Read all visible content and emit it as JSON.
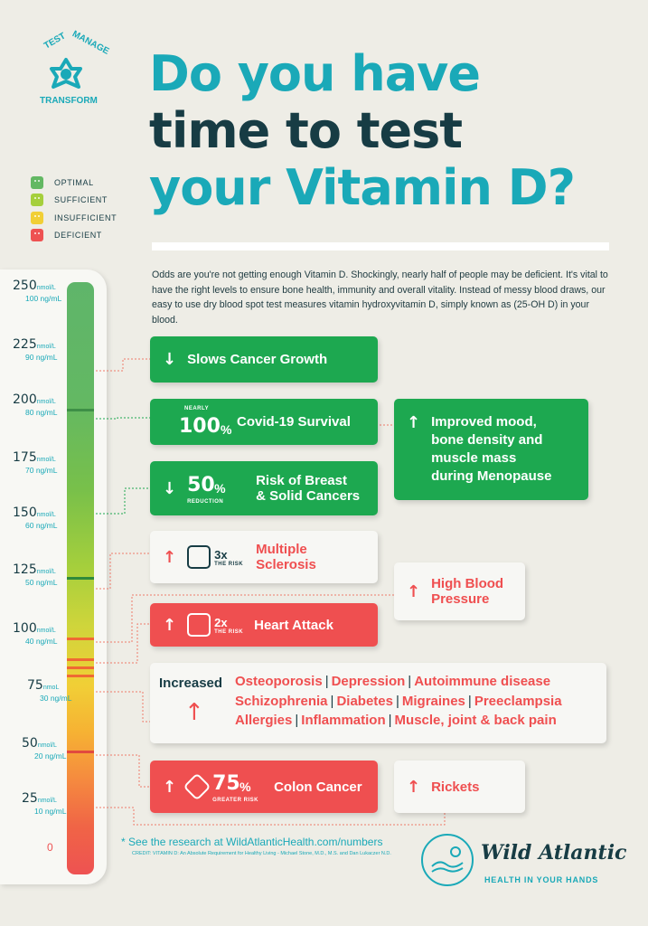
{
  "logo": {
    "words": [
      "TEST",
      "MANAGE",
      "TRANSFORM"
    ]
  },
  "title": {
    "line1": "Do you have",
    "line2": "time to test",
    "line3": "your Vitamin D?"
  },
  "legend": [
    {
      "label": "OPTIMAL",
      "color": "#63b863"
    },
    {
      "label": "SUFFICIENT",
      "color": "#a5cf3c"
    },
    {
      "label": "INSUFFICIENT",
      "color": "#f1cf36"
    },
    {
      "label": "DEFICIENT",
      "color": "#ee5252"
    }
  ],
  "intro": "Odds are you're not getting enough Vitamin D. Shockingly, nearly half of people may be deficient. It's vital to have the right levels to ensure bone health, immunity and overall vitality. Instead of messy blood draws, our easy to use dry blood spot test measures vitamin hydroxyvitamin D, simply known as (25-OH D) in your blood.",
  "scale": [
    {
      "nmol": "250",
      "nmol_unit": "nmol/L",
      "ng": "100 ng/mL"
    },
    {
      "nmol": "225",
      "nmol_unit": "nmol/L",
      "ng": "90 ng/mL"
    },
    {
      "nmol": "200",
      "nmol_unit": "nmol/L",
      "ng": "80 ng/mL"
    },
    {
      "nmol": "175",
      "nmol_unit": "nmol/L",
      "ng": "70 ng/mL"
    },
    {
      "nmol": "150",
      "nmol_unit": "nmol/L",
      "ng": "60 ng/mL"
    },
    {
      "nmol": "125",
      "nmol_unit": "nmol/L",
      "ng": "50 ng/mL"
    },
    {
      "nmol": "100",
      "nmol_unit": "nmol/L",
      "ng": "40 ng/mL"
    },
    {
      "nmol": "75",
      "nmol_unit": "nmoL",
      "ng": "30 ng/mL"
    },
    {
      "nmol": "50",
      "nmol_unit": "nmol/L",
      "ng": "20 ng/mL"
    },
    {
      "nmol": "25",
      "nmol_unit": "nmol/L",
      "ng": "10 ng/mL"
    }
  ],
  "zero": "0",
  "cards": {
    "cancer_growth": {
      "arrow": "↓",
      "text": "Slows Cancer Growth"
    },
    "covid": {
      "pre": "NEARLY",
      "big": "100",
      "pct": "%",
      "text": "Covid-19 Survival"
    },
    "breast": {
      "arrow": "↓",
      "big": "50",
      "pct": "%",
      "sub": "REDUCTION",
      "text1": "Risk of Breast",
      "text2": "& Solid Cancers"
    },
    "mood": {
      "arrow": "↑",
      "text1": "Improved mood,",
      "text2": "bone density and",
      "text3": "muscle mass",
      "text4": "during Menopause"
    },
    "ms": {
      "arrow": "↑",
      "mult": "3x",
      "sub": "THE RISK",
      "text1": "Multiple",
      "text2": "Sclerosis"
    },
    "bp": {
      "arrow": "↑",
      "text1": "High Blood",
      "text2": "Pressure"
    },
    "heart": {
      "arrow": "↑",
      "mult": "2x",
      "sub": "THE RISK",
      "text": "Heart Attack"
    },
    "colon": {
      "arrow": "↑",
      "big": "75",
      "pct": "%",
      "sub": "GREATER RISK",
      "text": "Colon Cancer"
    },
    "rickets": {
      "arrow": "↑",
      "text": "Rickets"
    }
  },
  "increased": {
    "label": "Increased",
    "arrow": "↑",
    "line1": [
      "Osteoporosis",
      "Depression",
      "Autoimmune disease"
    ],
    "line2": [
      "Schizophrenia",
      "Diabetes",
      "Migraines",
      "Preeclampsia"
    ],
    "line3": [
      "Allergies",
      "Inflammation",
      "Muscle, joint & back pain"
    ],
    "separator": "|"
  },
  "footnote": {
    "star": "*",
    "text": "See the research at WildAtlanticHealth.com/numbers"
  },
  "credit": "CREDIT: VITAMIN D: An Absolute Requirement for Healthy Living - Michael Stone, M.D., M.S. and Dan Lukaczer N.D.",
  "brand": {
    "name": "Wild Atlantic",
    "tagline": "HEALTH IN YOUR HANDS"
  },
  "colors": {
    "teal": "#1aa9b8",
    "navy": "#173c44",
    "green": "#1da850",
    "red": "#ef4f50"
  }
}
